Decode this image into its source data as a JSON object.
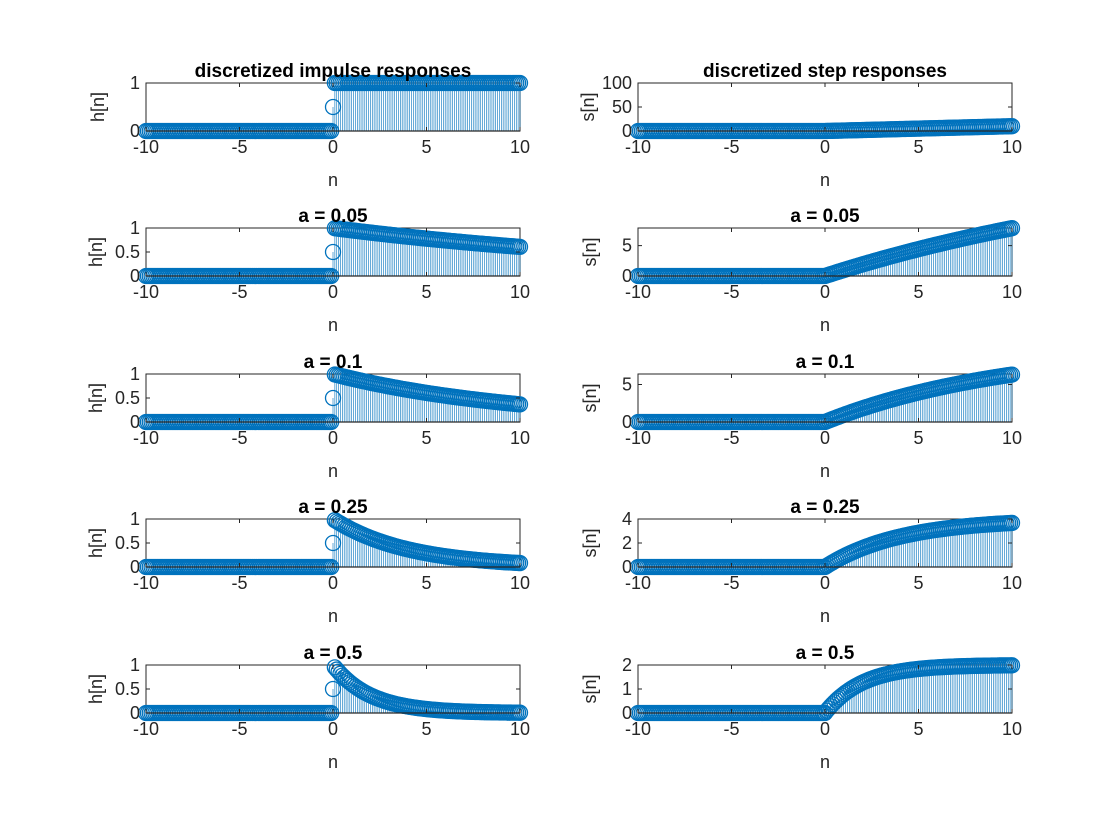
{
  "figure": {
    "background": "#ffffff",
    "stem_color": "#0072BD",
    "axis_color": "#262626"
  },
  "chart_data": [
    {
      "type": "stem",
      "title": "discretized impulse responses",
      "xlabel": "n",
      "ylabel": "h[n]",
      "function": "impulse",
      "a": 0,
      "xlim": [
        -10,
        10
      ],
      "ylim": [
        0,
        1
      ],
      "xticks": [
        "-10",
        "-5",
        "0",
        "5",
        "10"
      ],
      "yticks": [
        "0",
        "1"
      ],
      "value_at_zero": 0.5
    },
    {
      "type": "stem",
      "title": "discretized step responses",
      "xlabel": "n",
      "ylabel": "s[n]",
      "function": "step",
      "a": 0,
      "xlim": [
        -10,
        10
      ],
      "ylim": [
        0,
        100
      ],
      "xticks": [
        "-10",
        "-5",
        "0",
        "5",
        "10"
      ],
      "yticks": [
        "0",
        "50",
        "100"
      ]
    },
    {
      "type": "stem",
      "title": "a = 0.05",
      "xlabel": "n",
      "ylabel": "h[n]",
      "function": "impulse",
      "a": 0.05,
      "xlim": [
        -10,
        10
      ],
      "ylim": [
        0,
        1
      ],
      "xticks": [
        "-10",
        "-5",
        "0",
        "5",
        "10"
      ],
      "yticks": [
        "0",
        "0.5",
        "1"
      ],
      "value_at_zero": 0.5
    },
    {
      "type": "stem",
      "title": "a = 0.05",
      "xlabel": "n",
      "ylabel": "s[n]",
      "function": "step",
      "a": 0.05,
      "xlim": [
        -10,
        10
      ],
      "ylim": [
        0,
        7.9
      ],
      "xticks": [
        "-10",
        "-5",
        "0",
        "5",
        "10"
      ],
      "yticks": [
        "0",
        "5"
      ]
    },
    {
      "type": "stem",
      "title": "a = 0.1",
      "xlabel": "n",
      "ylabel": "h[n]",
      "function": "impulse",
      "a": 0.1,
      "xlim": [
        -10,
        10
      ],
      "ylim": [
        0,
        1
      ],
      "xticks": [
        "-10",
        "-5",
        "0",
        "5",
        "10"
      ],
      "yticks": [
        "0",
        "0.5",
        "1"
      ],
      "value_at_zero": 0.5
    },
    {
      "type": "stem",
      "title": "a = 0.1",
      "xlabel": "n",
      "ylabel": "s[n]",
      "function": "step",
      "a": 0.1,
      "xlim": [
        -10,
        10
      ],
      "ylim": [
        0,
        6.4
      ],
      "xticks": [
        "-10",
        "-5",
        "0",
        "5",
        "10"
      ],
      "yticks": [
        "0",
        "5"
      ]
    },
    {
      "type": "stem",
      "title": "a = 0.25",
      "xlabel": "n",
      "ylabel": "h[n]",
      "function": "impulse",
      "a": 0.25,
      "xlim": [
        -10,
        10
      ],
      "ylim": [
        0,
        1
      ],
      "xticks": [
        "-10",
        "-5",
        "0",
        "5",
        "10"
      ],
      "yticks": [
        "0",
        "0.5",
        "1"
      ],
      "value_at_zero": 0.5
    },
    {
      "type": "stem",
      "title": "a = 0.25",
      "xlabel": "n",
      "ylabel": "s[n]",
      "function": "step",
      "a": 0.25,
      "xlim": [
        -10,
        10
      ],
      "ylim": [
        0,
        4
      ],
      "xticks": [
        "-10",
        "-5",
        "0",
        "5",
        "10"
      ],
      "yticks": [
        "0",
        "2",
        "4"
      ]
    },
    {
      "type": "stem",
      "title": "a = 0.5",
      "xlabel": "n",
      "ylabel": "h[n]",
      "function": "impulse",
      "a": 0.5,
      "xlim": [
        -10,
        10
      ],
      "ylim": [
        0,
        1
      ],
      "xticks": [
        "-10",
        "-5",
        "0",
        "5",
        "10"
      ],
      "yticks": [
        "0",
        "0.5",
        "1"
      ],
      "value_at_zero": 0.5
    },
    {
      "type": "stem",
      "title": "a = 0.5",
      "xlabel": "n",
      "ylabel": "s[n]",
      "function": "step",
      "a": 0.5,
      "xlim": [
        -10,
        10
      ],
      "ylim": [
        0,
        2
      ],
      "xticks": [
        "-10",
        "-5",
        "0",
        "5",
        "10"
      ],
      "yticks": [
        "0",
        "1",
        "2"
      ]
    }
  ]
}
